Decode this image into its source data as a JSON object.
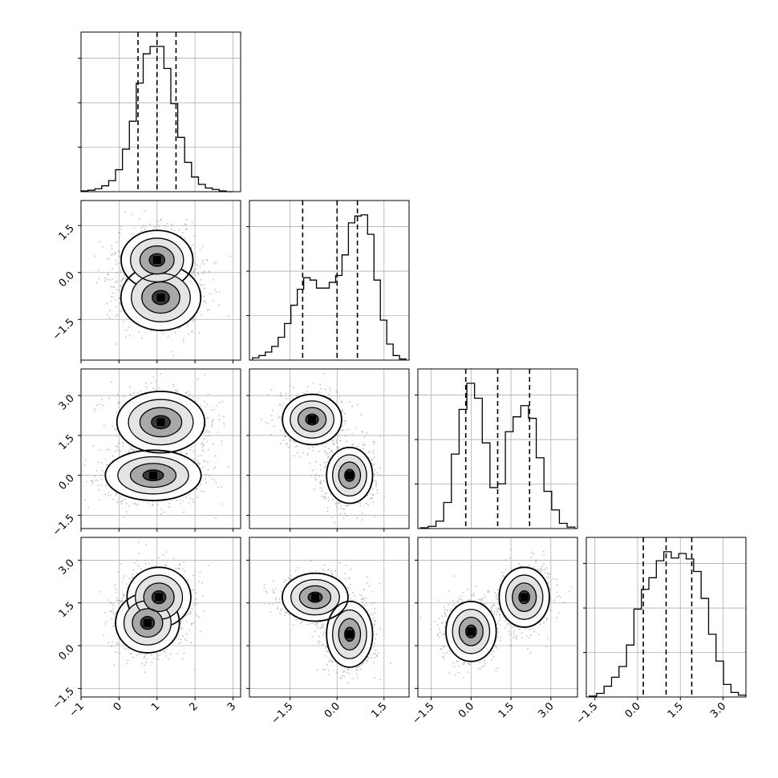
{
  "chart_data": {
    "type": "corner",
    "parameters": 4,
    "grid": true,
    "colors": {
      "line": "#000000",
      "grid": "#b0b0b0",
      "points": "#8a8a8a",
      "fill_dark": "#000000",
      "fill_light": "#ffffff"
    },
    "ranges": [
      [
        -1.0,
        3.2
      ],
      [
        -2.8,
        2.3
      ],
      [
        -2.0,
        4.0
      ],
      [
        -1.8,
        3.8
      ]
    ],
    "x_tick_labels": [
      [
        "−1",
        "0",
        "1",
        "2",
        "3"
      ],
      [
        "−1.5",
        "0.0",
        "1.5"
      ],
      [
        "−1.5",
        "0.0",
        "1.5",
        "3.0"
      ],
      [
        "−1.5",
        "0.0",
        "1.5",
        "3.0"
      ]
    ],
    "x_tick_values": [
      [
        -1,
        0,
        1,
        2,
        3
      ],
      [
        -1.5,
        0.0,
        1.5
      ],
      [
        -1.5,
        0.0,
        1.5,
        3.0
      ],
      [
        -1.5,
        0.0,
        1.5,
        3.0
      ]
    ],
    "y_tick_labels": {
      "1": [
        "−1.5",
        "0.0",
        "1.5"
      ],
      "2": [
        "−1.5",
        "0.0",
        "1.5",
        "3.0"
      ],
      "3": [
        "−1.5",
        "0.0",
        "1.5",
        "3.0"
      ]
    },
    "y_tick_values": {
      "1": [
        -1.5,
        0.0,
        1.5
      ],
      "2": [
        -1.5,
        0.0,
        1.5,
        3.0
      ],
      "3": [
        -1.5,
        0.0,
        1.5,
        3.0
      ]
    },
    "quantiles": [
      [
        0.5,
        1.0,
        1.5
      ],
      [
        -1.1,
        0.0,
        0.65
      ],
      [
        -0.2,
        1.0,
        2.2
      ],
      [
        0.2,
        1.0,
        1.9
      ]
    ],
    "histograms": [
      {
        "bins": [
          -1.0,
          3.0
        ],
        "counts": [
          1,
          2,
          4,
          8,
          15,
          30,
          58,
          96,
          148,
          188,
          198,
          198,
          168,
          120,
          74,
          40,
          20,
          10,
          5,
          3,
          1,
          0
        ]
      },
      {
        "bins": [
          -2.7,
          2.2
        ],
        "counts": [
          2,
          4,
          7,
          12,
          20,
          32,
          48,
          62,
          72,
          70,
          63,
          63,
          68,
          74,
          92,
          120,
          126,
          127,
          110,
          70,
          35,
          14,
          4,
          1
        ]
      },
      {
        "bins": [
          -1.9,
          3.9
        ],
        "counts": [
          1,
          3,
          10,
          35,
          100,
          160,
          195,
          175,
          115,
          55,
          60,
          130,
          150,
          165,
          148,
          95,
          50,
          25,
          7,
          2
        ]
      },
      {
        "bins": [
          -1.7,
          3.8
        ],
        "counts": [
          1,
          4,
          12,
          22,
          34,
          58,
          98,
          120,
          133,
          152,
          162,
          155,
          160,
          154,
          140,
          110,
          70,
          40,
          14,
          5,
          2
        ]
      }
    ],
    "joint_clusters": {
      "1,0": [
        {
          "cx": 1.0,
          "cy": 0.4,
          "sx": 0.45,
          "sy": 0.45,
          "w": 0.6
        },
        {
          "cx": 1.1,
          "cy": -0.8,
          "sx": 0.5,
          "sy": 0.5,
          "w": 0.4
        }
      ],
      "2,0": [
        {
          "cx": 1.1,
          "cy": 2.0,
          "sx": 0.55,
          "sy": 0.55,
          "w": 0.5
        },
        {
          "cx": 0.9,
          "cy": 0.0,
          "sx": 0.6,
          "sy": 0.45,
          "w": 0.5
        }
      ],
      "2,1": [
        {
          "cx": -0.8,
          "cy": 2.1,
          "sx": 0.45,
          "sy": 0.45,
          "w": 0.45
        },
        {
          "cx": 0.4,
          "cy": 0.0,
          "sx": 0.35,
          "sy": 0.5,
          "w": 0.55
        }
      ],
      "3,0": [
        {
          "cx": 1.05,
          "cy": 1.7,
          "sx": 0.4,
          "sy": 0.5,
          "w": 0.5
        },
        {
          "cx": 0.75,
          "cy": 0.8,
          "sx": 0.4,
          "sy": 0.5,
          "w": 0.5
        }
      ],
      "3,1": [
        {
          "cx": -0.7,
          "cy": 1.7,
          "sx": 0.5,
          "sy": 0.4,
          "w": 0.45
        },
        {
          "cx": 0.4,
          "cy": 0.4,
          "sx": 0.35,
          "sy": 0.55,
          "w": 0.55
        }
      ],
      "3,2": [
        {
          "cx": 0.0,
          "cy": 0.5,
          "sx": 0.45,
          "sy": 0.5,
          "w": 0.5
        },
        {
          "cx": 2.0,
          "cy": 1.7,
          "sx": 0.45,
          "sy": 0.5,
          "w": 0.5
        }
      ]
    }
  }
}
